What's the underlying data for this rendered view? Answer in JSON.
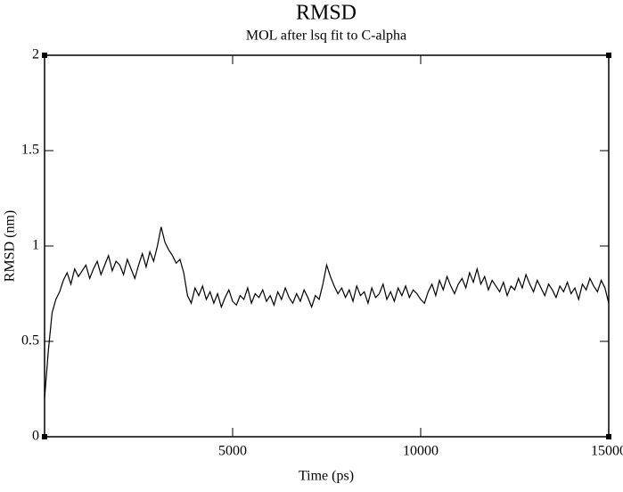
{
  "chart_data": {
    "type": "line",
    "title": "RMSD",
    "subtitle": "MOL after lsq fit to C-alpha",
    "x_label": "Time (ps)",
    "y_label": "RMSD (nm)",
    "xlim": [
      0,
      15000
    ],
    "ylim": [
      0,
      2
    ],
    "xticks": [
      5000,
      10000,
      15000
    ],
    "yticks": [
      0,
      0.5,
      1,
      1.5,
      2
    ],
    "x": [
      0,
      100,
      200,
      300,
      400,
      500,
      600,
      700,
      800,
      900,
      1000,
      1100,
      1200,
      1300,
      1400,
      1500,
      1600,
      1700,
      1800,
      1900,
      2000,
      2100,
      2200,
      2300,
      2400,
      2500,
      2600,
      2700,
      2800,
      2900,
      3000,
      3100,
      3200,
      3300,
      3400,
      3500,
      3600,
      3700,
      3800,
      3900,
      4000,
      4100,
      4200,
      4300,
      4400,
      4500,
      4600,
      4700,
      4800,
      4900,
      5000,
      5100,
      5200,
      5300,
      5400,
      5500,
      5600,
      5700,
      5800,
      5900,
      6000,
      6100,
      6200,
      6300,
      6400,
      6500,
      6600,
      6700,
      6800,
      6900,
      7000,
      7100,
      7200,
      7300,
      7400,
      7500,
      7600,
      7700,
      7800,
      7900,
      8000,
      8100,
      8200,
      8300,
      8400,
      8500,
      8600,
      8700,
      8800,
      8900,
      9000,
      9100,
      9200,
      9300,
      9400,
      9500,
      9600,
      9700,
      9800,
      9900,
      10000,
      10100,
      10200,
      10300,
      10400,
      10500,
      10600,
      10700,
      10800,
      10900,
      11000,
      11100,
      11200,
      11300,
      11400,
      11500,
      11600,
      11700,
      11800,
      11900,
      12000,
      12100,
      12200,
      12300,
      12400,
      12500,
      12600,
      12700,
      12800,
      12900,
      13000,
      13100,
      13200,
      13300,
      13400,
      13500,
      13600,
      13700,
      13800,
      13900,
      14000,
      14100,
      14200,
      14300,
      14400,
      14500,
      14600,
      14700,
      14800,
      14900,
      15000
    ],
    "series": [
      {
        "name": "RMSD",
        "color": "#000000",
        "values": [
          0.2,
          0.45,
          0.65,
          0.72,
          0.76,
          0.82,
          0.86,
          0.8,
          0.88,
          0.84,
          0.87,
          0.9,
          0.83,
          0.88,
          0.92,
          0.85,
          0.9,
          0.95,
          0.87,
          0.92,
          0.9,
          0.85,
          0.93,
          0.88,
          0.83,
          0.9,
          0.96,
          0.89,
          0.97,
          0.92,
          1.0,
          1.1,
          1.02,
          0.98,
          0.95,
          0.91,
          0.93,
          0.86,
          0.74,
          0.7,
          0.78,
          0.74,
          0.79,
          0.72,
          0.76,
          0.7,
          0.75,
          0.68,
          0.73,
          0.77,
          0.71,
          0.69,
          0.74,
          0.72,
          0.78,
          0.7,
          0.75,
          0.73,
          0.77,
          0.71,
          0.74,
          0.69,
          0.76,
          0.72,
          0.78,
          0.73,
          0.7,
          0.75,
          0.71,
          0.77,
          0.73,
          0.68,
          0.74,
          0.72,
          0.8,
          0.9,
          0.84,
          0.79,
          0.75,
          0.78,
          0.73,
          0.77,
          0.71,
          0.79,
          0.74,
          0.76,
          0.7,
          0.78,
          0.73,
          0.75,
          0.8,
          0.72,
          0.76,
          0.71,
          0.78,
          0.74,
          0.79,
          0.73,
          0.77,
          0.75,
          0.72,
          0.7,
          0.76,
          0.8,
          0.74,
          0.82,
          0.77,
          0.84,
          0.79,
          0.75,
          0.8,
          0.83,
          0.78,
          0.86,
          0.81,
          0.88,
          0.8,
          0.84,
          0.77,
          0.82,
          0.79,
          0.76,
          0.81,
          0.74,
          0.79,
          0.77,
          0.83,
          0.78,
          0.85,
          0.8,
          0.76,
          0.82,
          0.78,
          0.74,
          0.8,
          0.77,
          0.73,
          0.79,
          0.76,
          0.81,
          0.75,
          0.78,
          0.72,
          0.8,
          0.77,
          0.83,
          0.79,
          0.76,
          0.82,
          0.78,
          0.7
        ]
      }
    ]
  }
}
